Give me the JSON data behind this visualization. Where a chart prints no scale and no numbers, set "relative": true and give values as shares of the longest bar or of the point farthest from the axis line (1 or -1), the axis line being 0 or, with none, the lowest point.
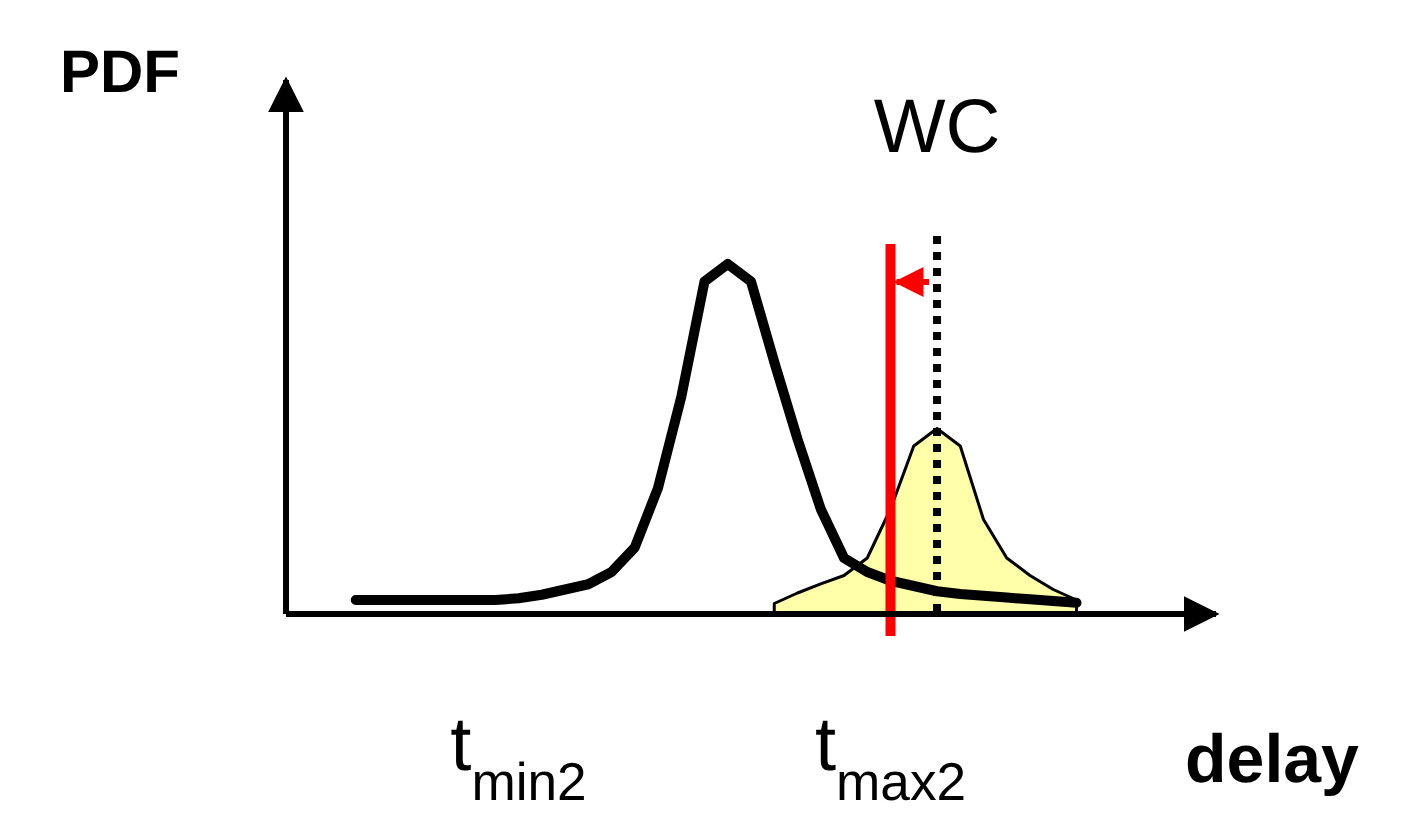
{
  "chart_data": {
    "type": "line",
    "relative": true,
    "ylabel": "PDF",
    "xlabel": "delay",
    "categories": [
      null,
      null,
      null,
      null,
      null,
      null,
      null,
      null,
      null,
      null,
      "t$_{min2}$",
      null,
      null,
      null,
      null,
      null,
      null,
      null,
      null,
      null,
      null,
      null,
      null,
      null,
      null,
      null,
      "t$_{max2}$",
      null,
      null,
      null,
      null,
      null,
      null,
      null,
      null,
      null,
      null,
      null,
      null,
      null,
      null
    ],
    "annotations": [
      "WC"
    ],
    "grid": false,
    "legend": false,
    "marker": "none",
    "line_style": "solid",
    "series": [
      {
        "type": "area",
        "color": "#ffffaa",
        "values": [
          null,
          null,
          null,
          null,
          null,
          null,
          null,
          null,
          null,
          null,
          null,
          null,
          null,
          null,
          null,
          null,
          null,
          null,
          null,
          null,
          null,
          0.03,
          0.06,
          0.086,
          0.11,
          0.16,
          0.3,
          0.48,
          0.53,
          0.48,
          0.27,
          0.16,
          0.11,
          0.07,
          0.04,
          null,
          null,
          null,
          null,
          null,
          null
        ]
      },
      {
        "color": "#000000",
        "values": [
          null,
          null,
          null,
          0.04,
          0.04,
          0.04,
          0.04,
          0.04,
          0.04,
          0.04,
          0.045,
          0.055,
          0.07,
          0.085,
          0.12,
          0.19,
          0.36,
          0.62,
          0.95,
          1,
          0.95,
          0.72,
          0.5,
          0.3,
          0.16,
          0.12,
          0.095,
          0.08,
          0.065,
          0.057,
          0.052,
          0.047,
          0.042,
          0.037,
          0.032,
          null,
          null,
          null,
          null,
          null,
          null
        ]
      }
    ],
    "ref_lines": [
      {
        "axis": "x",
        "value": "t$_{max2}$",
        "color": "#ff0000",
        "line_style": "solid"
      }
    ]
  }
}
